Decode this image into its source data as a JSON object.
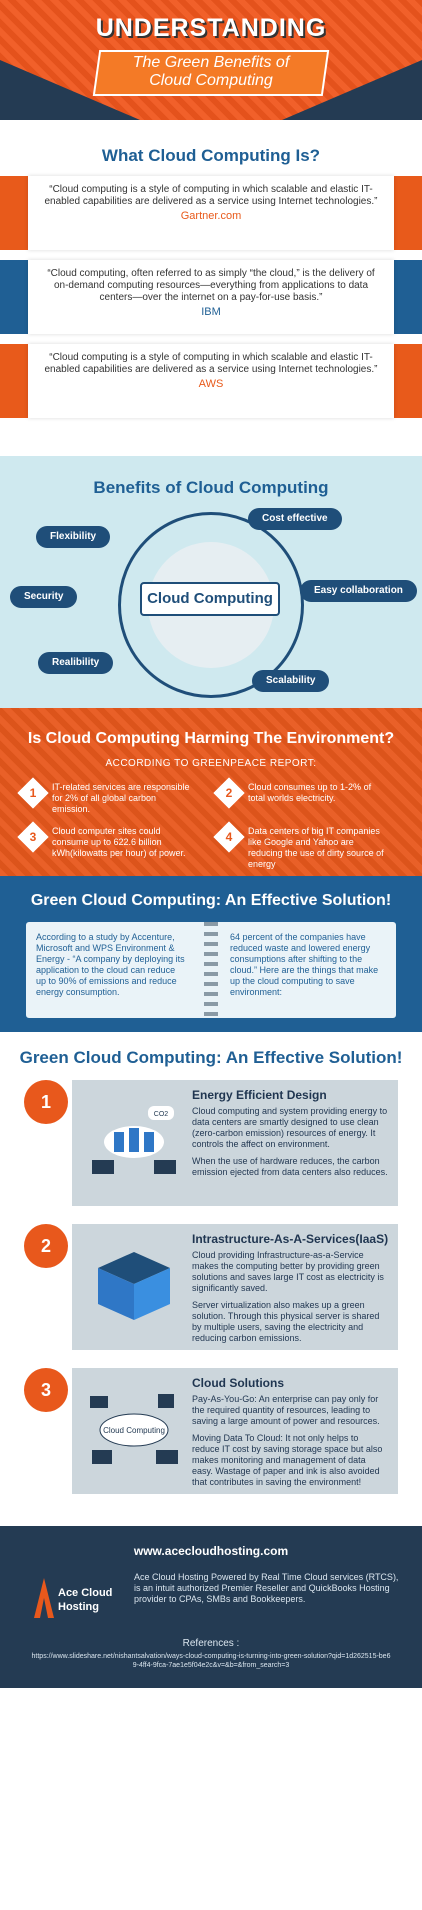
{
  "header": {
    "title": "UNDERSTANDING",
    "subtitle_line1": "The Green Benefits of",
    "subtitle_line2": "Cloud Computing"
  },
  "what": {
    "title": "What Cloud Computing Is?",
    "quotes": [
      {
        "text": "“Cloud computing is a style of computing in which scalable and elastic IT-enabled capabilities are delivered as a service using Internet technologies.”",
        "source": "Gartner.com"
      },
      {
        "text": "“Cloud computing, often referred to as simply “the cloud,” is the delivery of on-demand computing resources—everything from applications to data centers—over the internet on a pay-for-use basis.”",
        "source": "IBM"
      },
      {
        "text": "“Cloud computing is a style of computing in which scalable and elastic IT-enabled capabilities are delivered as a service using Internet technologies.”",
        "source": "AWS"
      }
    ]
  },
  "benefits": {
    "title": "Benefits of Cloud Computing",
    "center": "Cloud Computing",
    "items": [
      "Flexibility",
      "Cost effective",
      "Security",
      "Easy collaboration",
      "Realibility",
      "Scalability"
    ]
  },
  "harm": {
    "title": "Is Cloud Computing Harming The Environment?",
    "subtitle": "ACCORDING TO GREENPEACE REPORT:",
    "items": [
      {
        "num": "1",
        "text": "IT-related services are responsible for 2% of all global carbon emission."
      },
      {
        "num": "2",
        "text": "Cloud consumes up to 1-2% of total worlds electricity."
      },
      {
        "num": "3",
        "text": "Cloud computer sites could consume up to 622.6 billion kWh(kilowatts per hour) of power."
      },
      {
        "num": "4",
        "text": "Data centers of big IT companies like Google and Yahoo are reducing the use of dirty source of energy"
      }
    ]
  },
  "green1": {
    "title": "Green Cloud Computing: An Effective Solution!",
    "left": "According to a study by Accenture, Microsoft and WPS Environment & Energy - “A company by deploying its application to the cloud can reduce up to 90% of emissions and reduce energy consumption.",
    "right": "64 percent of the companies have reduced waste and lowered energy consumptions after shifting to the cloud.” Here are the things that make up the cloud computing to save environment:"
  },
  "green2": {
    "title": "Green Cloud Computing: An Effective Solution!",
    "cards": [
      {
        "num": "1",
        "title": "Energy Efficient Design",
        "p1": "Cloud computing and system providing energy to data centers are smartly designed to use clean (zero-carbon emission) resources of energy. It controls the affect on environment.",
        "p2": "When the use of hardware reduces, the carbon emission ejected from data centers also reduces.",
        "art_label": "CO2"
      },
      {
        "num": "2",
        "title": "Intrastructure-As-A-Services(IaaS)",
        "p1": "Cloud providing Infrastructure-as-a-Service makes the computing better by providing green solutions and saves large IT cost as electricity is significantly saved.",
        "p2": "Server virtualization also makes up a green solution. Through this physical server is shared by multiple users, saving the electricity and reducing carbon emissions.",
        "art_label": ""
      },
      {
        "num": "3",
        "title": "Cloud Solutions",
        "p1": "Pay-As-You-Go: An enterprise can pay only for the required quantity of resources, leading to saving a large amount of power and resources.",
        "p2": "Moving Data To Cloud: It not only helps to reduce IT cost by saving storage space but also makes monitoring and management of data easy. Wastage of paper and ink is also avoided that contributes in saving the environment!",
        "art_label": "Cloud Computing"
      }
    ]
  },
  "footer": {
    "url": "www.acecloudhosting.com",
    "brand_line1": "Ace Cloud",
    "brand_line2": "Hosting",
    "desc": "Ace Cloud Hosting Powered by Real Time Cloud services (RTCS), is an intuit authorized Premier Reseller and QuickBooks Hosting provider to CPAs, SMBs and Bookkeepers.",
    "refs_label": "References :",
    "refs_link": "https://www.slideshare.net/nishantsalvation/ways-cloud-computing-is-turning-into-green-solution?qid=1d262515-be69-4ff4-9fca-7ae1e5f04e2c&v=&b=&from_search=3"
  },
  "colors": {
    "orange": "#e8581c",
    "blue": "#1f5f94",
    "navy": "#243b53",
    "light_blue": "#cfe9ef"
  }
}
